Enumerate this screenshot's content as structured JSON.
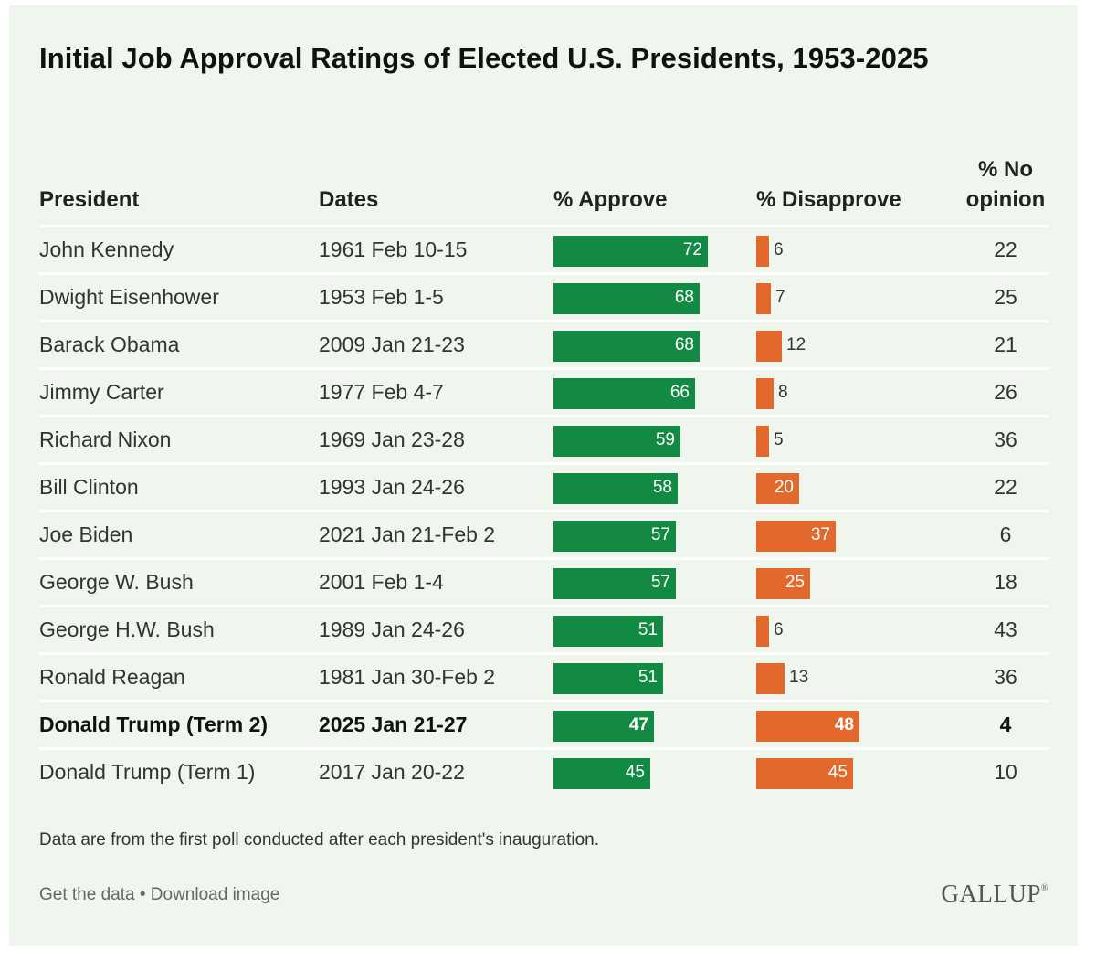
{
  "title": "Initial Job Approval Ratings of Elected U.S. Presidents, 1953-2025",
  "headers": {
    "president": "President",
    "dates": "Dates",
    "approve": "% Approve",
    "disapprove": "% Disapprove",
    "no_opinion_line1": "% No",
    "no_opinion_line2": "opinion"
  },
  "colors": {
    "approve": "#138a43",
    "disapprove": "#e2692d",
    "background": "#eef6ee"
  },
  "chart_data": {
    "type": "table",
    "title": "Initial Job Approval Ratings of Elected U.S. Presidents, 1953-2025",
    "columns": [
      "President",
      "Dates",
      "% Approve",
      "% Disapprove",
      "% No opinion"
    ],
    "rows": [
      {
        "president": "John Kennedy",
        "dates": "1961 Feb 10-15",
        "approve": 72,
        "disapprove": 6,
        "no_opinion": 22,
        "bold": false
      },
      {
        "president": "Dwight Eisenhower",
        "dates": "1953 Feb 1-5",
        "approve": 68,
        "disapprove": 7,
        "no_opinion": 25,
        "bold": false
      },
      {
        "president": "Barack Obama",
        "dates": "2009 Jan 21-23",
        "approve": 68,
        "disapprove": 12,
        "no_opinion": 21,
        "bold": false
      },
      {
        "president": "Jimmy Carter",
        "dates": "1977 Feb 4-7",
        "approve": 66,
        "disapprove": 8,
        "no_opinion": 26,
        "bold": false
      },
      {
        "president": "Richard Nixon",
        "dates": "1969 Jan 23-28",
        "approve": 59,
        "disapprove": 5,
        "no_opinion": 36,
        "bold": false
      },
      {
        "president": "Bill Clinton",
        "dates": "1993 Jan 24-26",
        "approve": 58,
        "disapprove": 20,
        "no_opinion": 22,
        "bold": false
      },
      {
        "president": "Joe Biden",
        "dates": "2021 Jan 21-Feb 2",
        "approve": 57,
        "disapprove": 37,
        "no_opinion": 6,
        "bold": false
      },
      {
        "president": "George W. Bush",
        "dates": "2001 Feb 1-4",
        "approve": 57,
        "disapprove": 25,
        "no_opinion": 18,
        "bold": false
      },
      {
        "president": "George H.W. Bush",
        "dates": "1989 Jan 24-26",
        "approve": 51,
        "disapprove": 6,
        "no_opinion": 43,
        "bold": false
      },
      {
        "president": "Ronald Reagan",
        "dates": "1981 Jan 30-Feb 2",
        "approve": 51,
        "disapprove": 13,
        "no_opinion": 36,
        "bold": false
      },
      {
        "president": "Donald Trump (Term 2)",
        "dates": "2025 Jan 21-27",
        "approve": 47,
        "disapprove": 48,
        "no_opinion": 4,
        "bold": true
      },
      {
        "president": "Donald Trump (Term 1)",
        "dates": "2017 Jan 20-22",
        "approve": 45,
        "disapprove": 45,
        "no_opinion": 10,
        "bold": false
      }
    ]
  },
  "footnote": "Data are from the first poll conducted after each president's inauguration.",
  "links": {
    "get_data": "Get the data",
    "separator": " • ",
    "download": "Download image"
  },
  "logo": {
    "text": "GALLUP",
    "mark": "®"
  }
}
